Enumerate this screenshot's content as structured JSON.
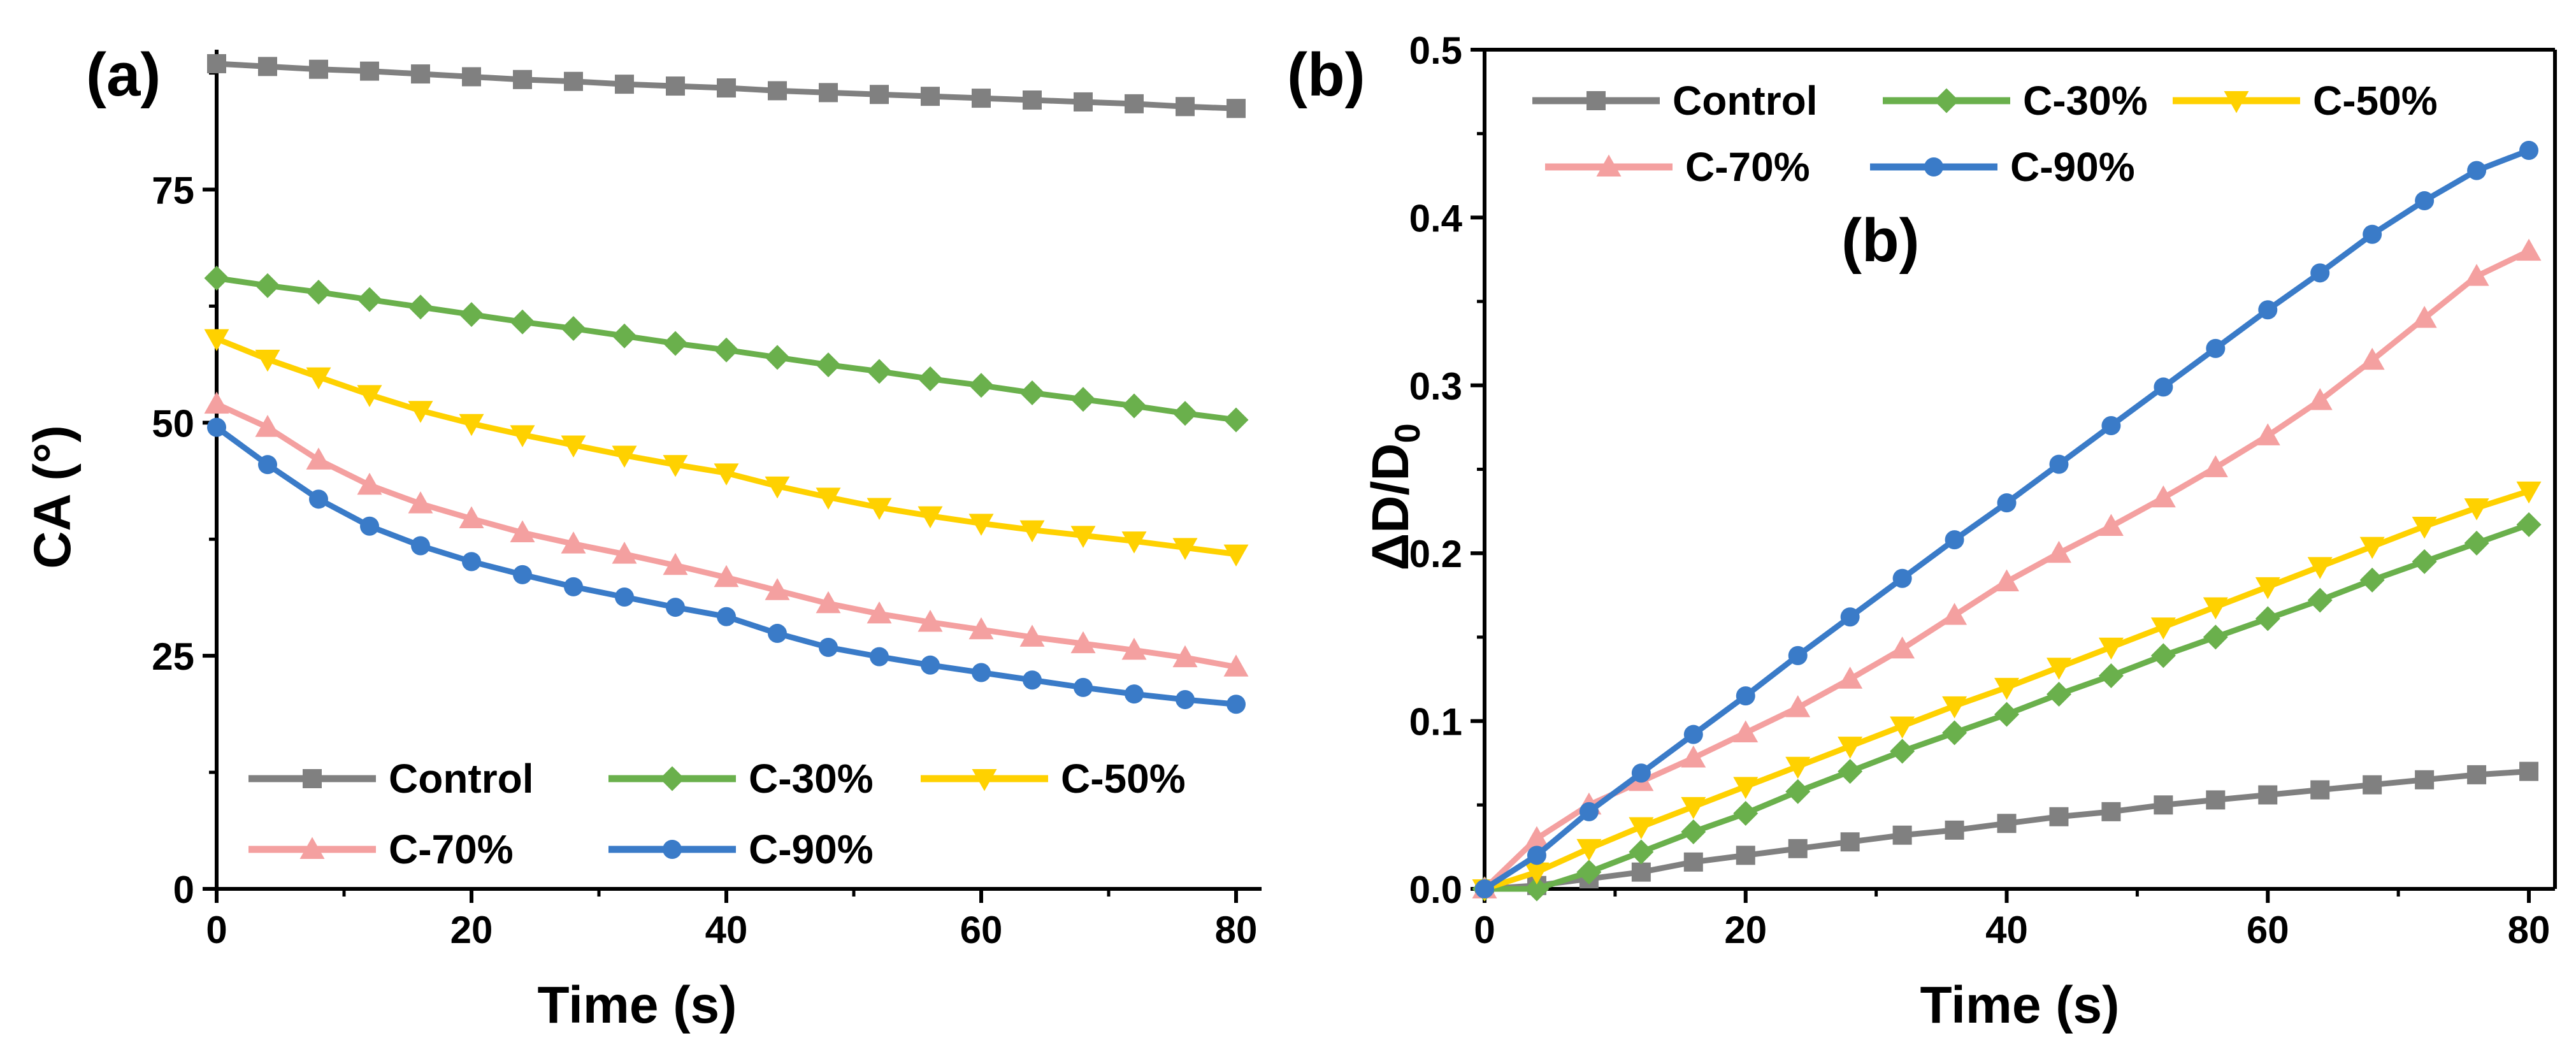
{
  "chart_data": [
    {
      "type": "line",
      "panel_label": "(a)",
      "xlabel": "Time (s)",
      "ylabel": "CA (°)",
      "xlim": [
        0,
        82
      ],
      "ylim": [
        0,
        90
      ],
      "xticks": [
        0,
        20,
        40,
        60,
        80
      ],
      "yticks": [
        0,
        25,
        50,
        75
      ],
      "legend_position": "bottom-left",
      "x": [
        0,
        4,
        8,
        12,
        16,
        20,
        24,
        28,
        32,
        36,
        40,
        44,
        48,
        52,
        56,
        60,
        64,
        68,
        72,
        76,
        80
      ],
      "series": [
        {
          "name": "Control",
          "color": "#808080",
          "marker": "square",
          "values": [
            88.5,
            88.2,
            87.9,
            87.7,
            87.4,
            87.1,
            86.8,
            86.6,
            86.3,
            86.1,
            85.9,
            85.6,
            85.4,
            85.2,
            85.0,
            84.8,
            84.6,
            84.4,
            84.2,
            83.9,
            83.7
          ]
        },
        {
          "name": "C-30%",
          "color": "#6AB04C",
          "marker": "diamond",
          "values": [
            65.5,
            64.7,
            64.0,
            63.2,
            62.4,
            61.6,
            60.8,
            60.1,
            59.3,
            58.5,
            57.8,
            57.0,
            56.2,
            55.5,
            54.7,
            54.0,
            53.2,
            52.5,
            51.8,
            51.0,
            50.3
          ]
        },
        {
          "name": "C-50%",
          "color": "#FFD100",
          "marker": "triangle-down",
          "values": [
            59.0,
            56.8,
            54.9,
            53.0,
            51.3,
            49.9,
            48.7,
            47.6,
            46.5,
            45.5,
            44.6,
            43.2,
            42.0,
            40.9,
            40.0,
            39.2,
            38.5,
            37.9,
            37.3,
            36.6,
            35.9
          ]
        },
        {
          "name": "C-70%",
          "color": "#F4A0A0",
          "marker": "triangle-up",
          "values": [
            52.0,
            49.5,
            46.0,
            43.3,
            41.3,
            39.7,
            38.2,
            37.0,
            35.9,
            34.7,
            33.4,
            32.0,
            30.6,
            29.5,
            28.6,
            27.8,
            27.0,
            26.3,
            25.6,
            24.8,
            23.8
          ]
        },
        {
          "name": "C-90%",
          "color": "#3A7BC8",
          "marker": "circle",
          "values": [
            49.5,
            45.5,
            41.8,
            38.9,
            36.8,
            35.1,
            33.7,
            32.4,
            31.3,
            30.2,
            29.2,
            27.4,
            25.9,
            24.9,
            24.0,
            23.2,
            22.4,
            21.6,
            20.9,
            20.3,
            19.8
          ]
        }
      ]
    },
    {
      "type": "line",
      "panel_label": "(b)",
      "inner_label": "(b)",
      "xlabel": "Time (s)",
      "ylabel_main": "ΔD/D",
      "ylabel_sub": "0",
      "xlim": [
        0,
        82
      ],
      "ylim": [
        0,
        0.5
      ],
      "xticks": [
        0,
        20,
        40,
        60,
        80
      ],
      "yticks": [
        0.0,
        0.1,
        0.2,
        0.3,
        0.4,
        0.5
      ],
      "ytick_labels": [
        "0.0",
        "0.1",
        "0.2",
        "0.3",
        "0.4",
        "0.5"
      ],
      "legend_position": "top-left",
      "x": [
        0,
        4,
        8,
        12,
        16,
        20,
        24,
        28,
        32,
        36,
        40,
        44,
        48,
        52,
        56,
        60,
        64,
        68,
        72,
        76,
        80
      ],
      "series": [
        {
          "name": "Control",
          "color": "#808080",
          "marker": "square",
          "values": [
            0.0,
            0.002,
            0.006,
            0.01,
            0.016,
            0.02,
            0.024,
            0.028,
            0.032,
            0.035,
            0.039,
            0.043,
            0.046,
            0.05,
            0.053,
            0.056,
            0.059,
            0.062,
            0.065,
            0.068,
            0.07
          ]
        },
        {
          "name": "C-30%",
          "color": "#6AB04C",
          "marker": "diamond",
          "values": [
            0.0,
            0.0,
            0.01,
            0.022,
            0.034,
            0.045,
            0.058,
            0.07,
            0.082,
            0.093,
            0.104,
            0.116,
            0.127,
            0.139,
            0.15,
            0.161,
            0.172,
            0.184,
            0.195,
            0.206,
            0.217
          ]
        },
        {
          "name": "C-50%",
          "color": "#FFD100",
          "marker": "triangle-down",
          "values": [
            0.0,
            0.01,
            0.024,
            0.037,
            0.049,
            0.061,
            0.073,
            0.085,
            0.097,
            0.109,
            0.12,
            0.132,
            0.144,
            0.156,
            0.168,
            0.18,
            0.192,
            0.204,
            0.216,
            0.227,
            0.237
          ]
        },
        {
          "name": "C-70%",
          "color": "#F4A0A0",
          "marker": "triangle-up",
          "values": [
            0.0,
            0.03,
            0.05,
            0.064,
            0.078,
            0.093,
            0.108,
            0.125,
            0.143,
            0.163,
            0.183,
            0.2,
            0.216,
            0.233,
            0.251,
            0.27,
            0.291,
            0.315,
            0.34,
            0.365,
            0.38
          ]
        },
        {
          "name": "C-90%",
          "color": "#3A7BC8",
          "marker": "circle",
          "values": [
            0.0,
            0.02,
            0.046,
            0.069,
            0.092,
            0.115,
            0.139,
            0.162,
            0.185,
            0.208,
            0.23,
            0.253,
            0.276,
            0.299,
            0.322,
            0.345,
            0.367,
            0.39,
            0.41,
            0.428,
            0.44
          ]
        }
      ]
    }
  ]
}
